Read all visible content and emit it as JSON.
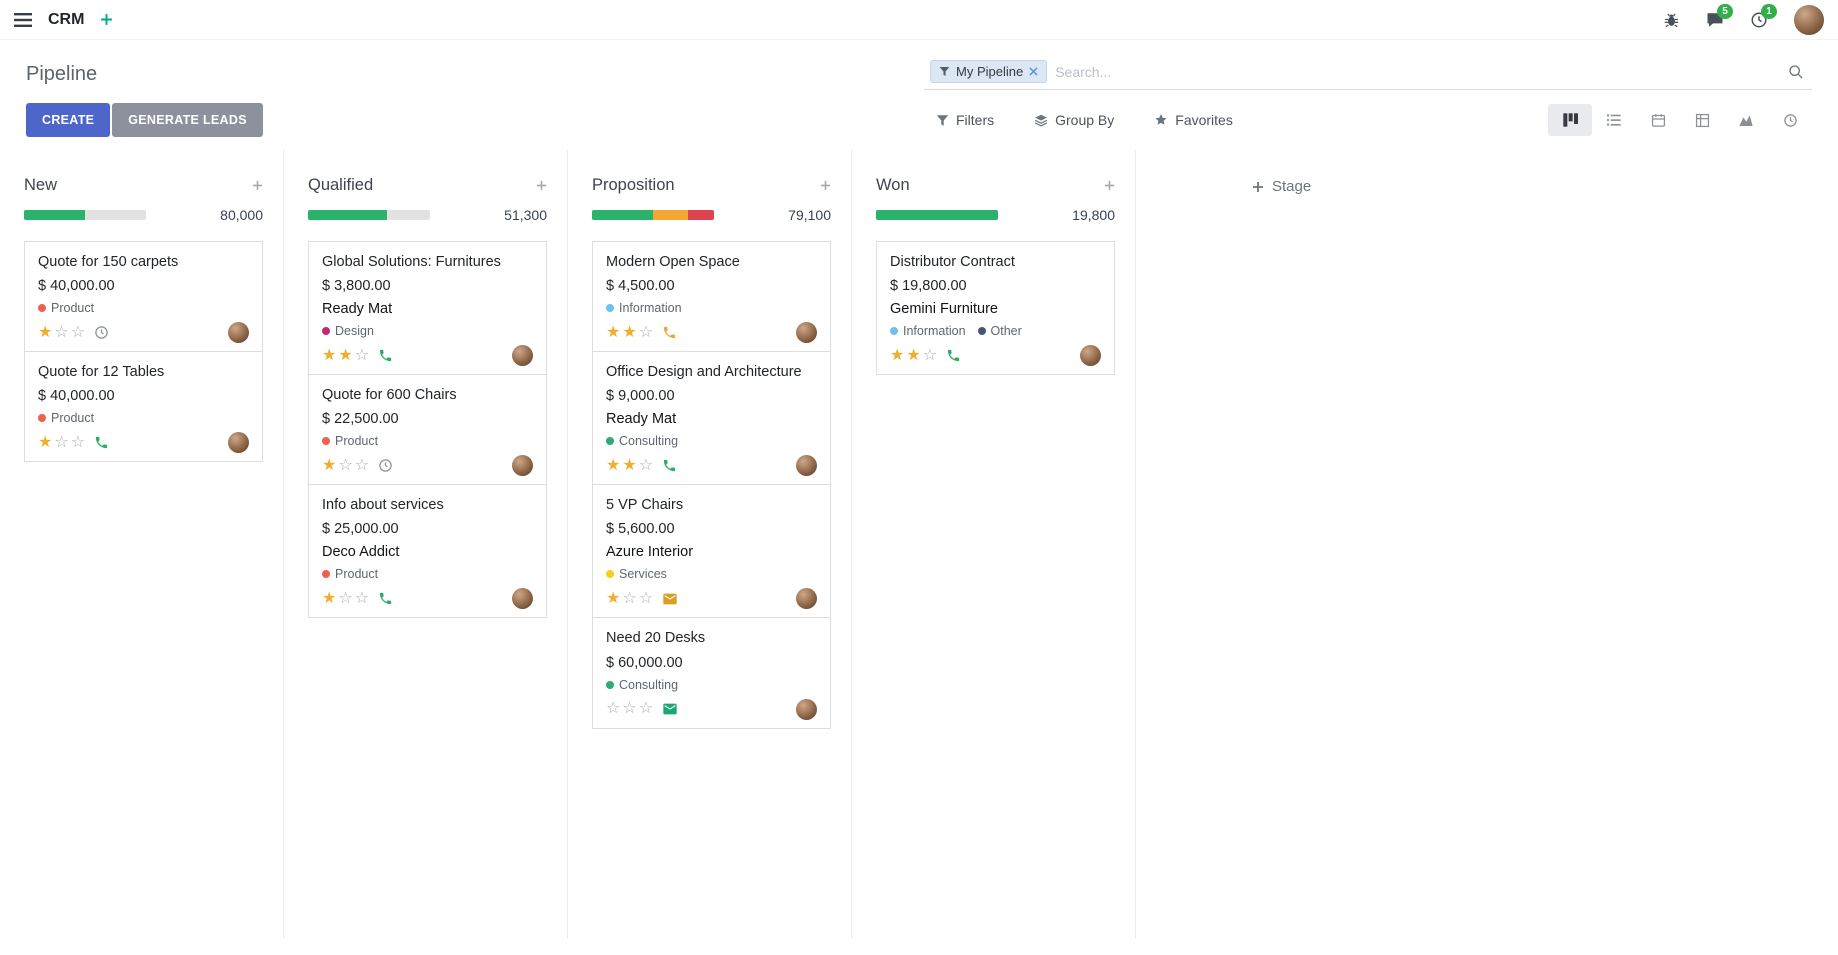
{
  "topbar": {
    "app_name": "CRM",
    "chat_badge": "5",
    "activity_badge": "1"
  },
  "control_panel": {
    "title": "Pipeline",
    "search": {
      "facet_label": "My Pipeline",
      "placeholder": "Search..."
    },
    "create_label": "CREATE",
    "generate_leads_label": "GENERATE LEADS",
    "filters_label": "Filters",
    "group_by_label": "Group By",
    "favorites_label": "Favorites"
  },
  "board": {
    "add_stage_label": "Stage",
    "columns": [
      {
        "name": "New",
        "counter": "80,000",
        "progress": [
          {
            "color": "#29B36B",
            "pct": 50
          }
        ],
        "cards": [
          {
            "title": "Quote for 150 carpets",
            "amount": "$ 40,000.00",
            "partner": "",
            "tags": [
              {
                "label": "Product",
                "color": "#F06050"
              }
            ],
            "stars": 1,
            "activity": {
              "type": "clock",
              "color": "#8a8f98"
            }
          },
          {
            "title": "Quote for 12 Tables",
            "amount": "$ 40,000.00",
            "partner": "",
            "tags": [
              {
                "label": "Product",
                "color": "#F06050"
              }
            ],
            "stars": 1,
            "activity": {
              "type": "phone",
              "color": "#2EAD62"
            }
          }
        ]
      },
      {
        "name": "Qualified",
        "counter": "51,300",
        "progress": [
          {
            "color": "#29B36B",
            "pct": 65
          }
        ],
        "cards": [
          {
            "title": "Global Solutions: Furnitures",
            "amount": "$ 3,800.00",
            "partner": "Ready Mat",
            "tags": [
              {
                "label": "Design",
                "color": "#C6286B"
              }
            ],
            "stars": 2,
            "activity": {
              "type": "phone",
              "color": "#2EAD62"
            }
          },
          {
            "title": "Quote for 600 Chairs",
            "amount": "$ 22,500.00",
            "partner": "",
            "tags": [
              {
                "label": "Product",
                "color": "#F06050"
              }
            ],
            "stars": 1,
            "activity": {
              "type": "clock",
              "color": "#8a8f98"
            }
          },
          {
            "title": "Info about services",
            "amount": "$ 25,000.00",
            "partner": "Deco Addict",
            "tags": [
              {
                "label": "Product",
                "color": "#F06050"
              }
            ],
            "stars": 1,
            "activity": {
              "type": "phone",
              "color": "#2EAD62"
            }
          }
        ]
      },
      {
        "name": "Proposition",
        "counter": "79,100",
        "progress": [
          {
            "color": "#29B36B",
            "pct": 50
          },
          {
            "color": "#F5A733",
            "pct": 29
          },
          {
            "color": "#E04350",
            "pct": 21
          }
        ],
        "cards": [
          {
            "title": "Modern Open Space",
            "amount": "$ 4,500.00",
            "partner": "",
            "tags": [
              {
                "label": "Information",
                "color": "#6CC1ED"
              }
            ],
            "stars": 2,
            "activity": {
              "type": "phone",
              "color": "#F2A33C"
            }
          },
          {
            "title": "Office Design and Architecture",
            "amount": "$ 9,000.00",
            "partner": "Ready Mat",
            "tags": [
              {
                "label": "Consulting",
                "color": "#2FAB73"
              }
            ],
            "stars": 2,
            "activity": {
              "type": "phone",
              "color": "#2EAD62"
            }
          },
          {
            "title": "5 VP Chairs",
            "amount": "$ 5,600.00",
            "partner": "Azure Interior",
            "tags": [
              {
                "label": "Services",
                "color": "#F7CD1F"
              }
            ],
            "stars": 1,
            "activity": {
              "type": "mail",
              "color": "#DA9E21"
            }
          },
          {
            "title": "Need 20 Desks",
            "amount": "$ 60,000.00",
            "partner": "",
            "tags": [
              {
                "label": "Consulting",
                "color": "#2FAB73"
              }
            ],
            "stars": 0,
            "activity": {
              "type": "mail",
              "color": "#1CA673"
            }
          }
        ]
      },
      {
        "name": "Won",
        "counter": "19,800",
        "progress": [
          {
            "color": "#29B36B",
            "pct": 100
          }
        ],
        "cards": [
          {
            "title": "Distributor Contract",
            "amount": "$ 19,800.00",
            "partner": "Gemini Furniture",
            "tags": [
              {
                "label": "Information",
                "color": "#6CC1ED"
              },
              {
                "label": "Other",
                "color": "#475577"
              }
            ],
            "stars": 2,
            "activity": {
              "type": "phone",
              "color": "#2EAD62"
            }
          }
        ]
      }
    ]
  }
}
